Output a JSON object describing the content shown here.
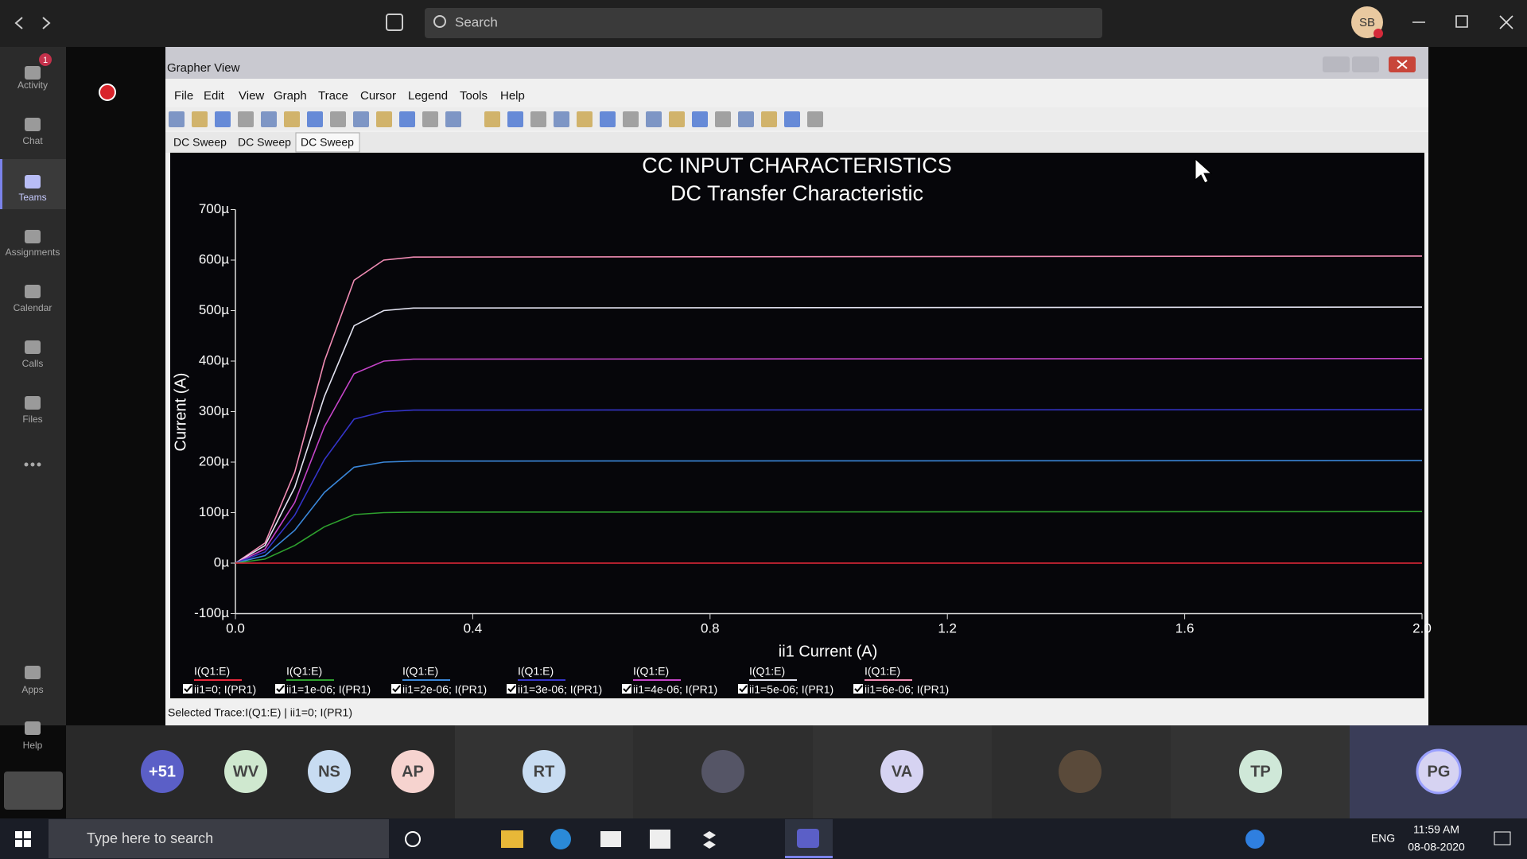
{
  "top_bar": {
    "search_placeholder": "Search",
    "avatar": "SB"
  },
  "rail": {
    "items": [
      {
        "label": "Activity",
        "badge": 1
      },
      {
        "label": "Chat"
      },
      {
        "label": "Teams"
      },
      {
        "label": "Assignments"
      },
      {
        "label": "Calendar"
      },
      {
        "label": "Calls"
      },
      {
        "label": "Files"
      },
      {
        "label": "Apps"
      },
      {
        "label": "Help"
      }
    ]
  },
  "window": {
    "title": "Grapher View",
    "menu": [
      "File",
      "Edit",
      "View",
      "Graph",
      "Trace",
      "Cursor",
      "Legend",
      "Tools",
      "Help"
    ],
    "tabs": [
      "DC Sweep",
      "DC Sweep",
      "DC Sweep"
    ],
    "status": "Selected Trace:I(Q1:E) | ii1=0; I(PR1)"
  },
  "chart_data": {
    "type": "line",
    "title": "CC INPUT CHARACTERISTICS",
    "subtitle": "DC Transfer Characteristic",
    "x_label": "ii1 Current (A)",
    "y_label": "Current (A)",
    "x": [
      0,
      0.05,
      0.1,
      0.15,
      0.2,
      0.25,
      0.3,
      2.0
    ],
    "xlim": [
      0,
      2
    ],
    "xticks": [
      {
        "value": 0,
        "label": "0.0"
      },
      0.4,
      0.8,
      1.2,
      1.6,
      {
        "value": 2,
        "label": "2.0"
      }
    ],
    "ylim": [
      -0.0001,
      0.0007
    ],
    "yticks": [
      {
        "value": -0.0001,
        "label": "-100µ"
      },
      {
        "value": 0,
        "label": "0µ"
      },
      {
        "value": 0.0001,
        "label": "100µ"
      },
      {
        "value": 0.0002,
        "label": "200µ"
      },
      {
        "value": 0.0003,
        "label": "300µ"
      },
      {
        "value": 0.0004,
        "label": "400µ"
      },
      {
        "value": 0.0005,
        "label": "500µ"
      },
      {
        "value": 0.0006,
        "label": "600µ"
      },
      {
        "value": 0.0007,
        "label": "700µ"
      }
    ],
    "series": [
      {
        "trace": "I(Q1:E)",
        "name": "ii1=0; I(PR1)",
        "color": "#e8283a",
        "values": [
          0,
          0,
          0,
          0,
          0,
          0,
          0,
          0
        ]
      },
      {
        "trace": "I(Q1:E)",
        "name": "ii1=1e-06; I(PR1)",
        "color": "#2ea02e",
        "values": [
          0,
          8e-06,
          3.5e-05,
          7.2e-05,
          9.6e-05,
          0.0001,
          0.000101,
          0.000102
        ]
      },
      {
        "trace": "I(Q1:E)",
        "name": "ii1=2e-06; I(PR1)",
        "color": "#3a86d8",
        "values": [
          0,
          1.5e-05,
          6.5e-05,
          0.00014,
          0.00019,
          0.0002,
          0.000202,
          0.000203
        ]
      },
      {
        "trace": "I(Q1:E)",
        "name": "ii1=3e-06; I(PR1)",
        "color": "#3434c8",
        "values": [
          0,
          2.2e-05,
          9.5e-05,
          0.000205,
          0.000285,
          0.0003,
          0.000303,
          0.000304
        ]
      },
      {
        "trace": "I(Q1:E)",
        "name": "ii1=4e-06; I(PR1)",
        "color": "#c444c8",
        "values": [
          0,
          2.8e-05,
          0.00012,
          0.00027,
          0.000375,
          0.0004,
          0.000404,
          0.000405
        ]
      },
      {
        "trace": "I(Q1:E)",
        "name": "ii1=5e-06; I(PR1)",
        "color": "#e2e2f0",
        "values": [
          0,
          3.5e-05,
          0.00015,
          0.00033,
          0.00047,
          0.0005,
          0.000505,
          0.000507
        ]
      },
      {
        "trace": "I(Q1:E)",
        "name": "ii1=6e-06; I(PR1)",
        "color": "#f08cb4",
        "values": [
          0,
          4e-05,
          0.00018,
          0.0004,
          0.00056,
          0.0006,
          0.000606,
          0.000608
        ]
      }
    ]
  },
  "participants": [
    "+51",
    "WV",
    "NS",
    "AP",
    "RT",
    "VA",
    "TP",
    "PG"
  ],
  "taskbar": {
    "search_placeholder": "Type here to search",
    "language": "ENG",
    "time": "11:59 AM",
    "date": "08-08-2020"
  }
}
